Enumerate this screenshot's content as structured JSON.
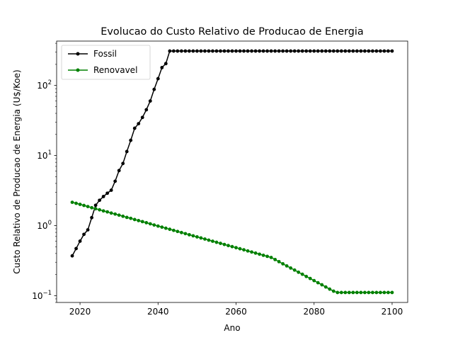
{
  "chart_data": {
    "type": "line",
    "title": "Evolucao do Custo Relativo de Producao de Energia",
    "xlabel": "Ano",
    "ylabel": "Custo Relativo de Producao de Energia (U$/Koe)",
    "yscale": "log",
    "xlim": [
      2014,
      2104
    ],
    "ylim": [
      0.08,
      430
    ],
    "xticks": [
      {
        "value": 2020,
        "label": "2020"
      },
      {
        "value": 2040,
        "label": "2040"
      },
      {
        "value": 2060,
        "label": "2060"
      },
      {
        "value": 2080,
        "label": "2080"
      },
      {
        "value": 2100,
        "label": "2100"
      }
    ],
    "yticks": [
      {
        "value": 0.1,
        "base": "10",
        "exp": "−1"
      },
      {
        "value": 1,
        "base": "10",
        "exp": "0"
      },
      {
        "value": 10,
        "base": "10",
        "exp": "1"
      },
      {
        "value": 100,
        "base": "10",
        "exp": "2"
      }
    ],
    "legend_position": "upper-left",
    "grid": false,
    "series": [
      {
        "name": "Fossil",
        "color": "#000000",
        "marker": "circle",
        "x": [
          2018,
          2019,
          2020,
          2021,
          2022,
          2023,
          2024,
          2025,
          2026,
          2027,
          2028,
          2029,
          2030,
          2031,
          2032,
          2033,
          2034,
          2035,
          2036,
          2037,
          2038,
          2039,
          2040,
          2041,
          2042,
          2043,
          2044,
          2045,
          2046,
          2047,
          2048,
          2049,
          2050,
          2051,
          2052,
          2053,
          2054,
          2055,
          2056,
          2057,
          2058,
          2059,
          2060,
          2061,
          2062,
          2063,
          2064,
          2065,
          2066,
          2067,
          2068,
          2069,
          2070,
          2071,
          2072,
          2073,
          2074,
          2075,
          2076,
          2077,
          2078,
          2079,
          2080,
          2081,
          2082,
          2083,
          2084,
          2085,
          2086,
          2087,
          2088,
          2089,
          2090,
          2091,
          2092,
          2093,
          2094,
          2095,
          2096,
          2097,
          2098,
          2099,
          2100
        ],
        "y": [
          0.37,
          0.47,
          0.6,
          0.75,
          0.87,
          1.3,
          1.95,
          2.3,
          2.6,
          2.9,
          3.2,
          4.3,
          6.1,
          7.7,
          11.4,
          16.5,
          24.5,
          28.5,
          35,
          45,
          60,
          88,
          125,
          180,
          205,
          310,
          310,
          310,
          310,
          310,
          310,
          310,
          310,
          310,
          310,
          310,
          310,
          310,
          310,
          310,
          310,
          310,
          310,
          310,
          310,
          310,
          310,
          310,
          310,
          310,
          310,
          310,
          310,
          310,
          310,
          310,
          310,
          310,
          310,
          310,
          310,
          310,
          310,
          310,
          310,
          310,
          310,
          310,
          310,
          310,
          310,
          310,
          310,
          310,
          310,
          310,
          310,
          310,
          310,
          310,
          310,
          310,
          310
        ]
      },
      {
        "name": "Renovavel",
        "color": "#008000",
        "marker": "circle",
        "x": [
          2018,
          2019,
          2020,
          2021,
          2022,
          2023,
          2024,
          2025,
          2026,
          2027,
          2028,
          2029,
          2030,
          2031,
          2032,
          2033,
          2034,
          2035,
          2036,
          2037,
          2038,
          2039,
          2040,
          2041,
          2042,
          2043,
          2044,
          2045,
          2046,
          2047,
          2048,
          2049,
          2050,
          2051,
          2052,
          2053,
          2054,
          2055,
          2056,
          2057,
          2058,
          2059,
          2060,
          2061,
          2062,
          2063,
          2064,
          2065,
          2066,
          2067,
          2068,
          2069,
          2070,
          2071,
          2072,
          2073,
          2074,
          2075,
          2076,
          2077,
          2078,
          2079,
          2080,
          2081,
          2082,
          2083,
          2084,
          2085,
          2086,
          2087,
          2088,
          2089,
          2090,
          2091,
          2092,
          2093,
          2094,
          2095,
          2096,
          2097,
          2098,
          2099,
          2100
        ],
        "y": [
          2.15,
          2.08,
          2.01,
          1.94,
          1.87,
          1.8,
          1.74,
          1.68,
          1.62,
          1.57,
          1.51,
          1.46,
          1.41,
          1.36,
          1.31,
          1.27,
          1.22,
          1.18,
          1.14,
          1.1,
          1.06,
          1.02,
          0.985,
          0.951,
          0.918,
          0.886,
          0.855,
          0.825,
          0.796,
          0.768,
          0.741,
          0.715,
          0.69,
          0.666,
          0.643,
          0.62,
          0.599,
          0.578,
          0.558,
          0.538,
          0.519,
          0.501,
          0.484,
          0.467,
          0.451,
          0.435,
          0.42,
          0.405,
          0.391,
          0.377,
          0.364,
          0.351,
          0.328,
          0.306,
          0.285,
          0.266,
          0.248,
          0.232,
          0.216,
          0.202,
          0.188,
          0.176,
          0.164,
          0.153,
          0.143,
          0.133,
          0.124,
          0.116,
          0.111,
          0.111,
          0.111,
          0.111,
          0.111,
          0.111,
          0.111,
          0.111,
          0.111,
          0.111,
          0.111,
          0.111,
          0.111,
          0.111,
          0.111
        ]
      }
    ]
  }
}
